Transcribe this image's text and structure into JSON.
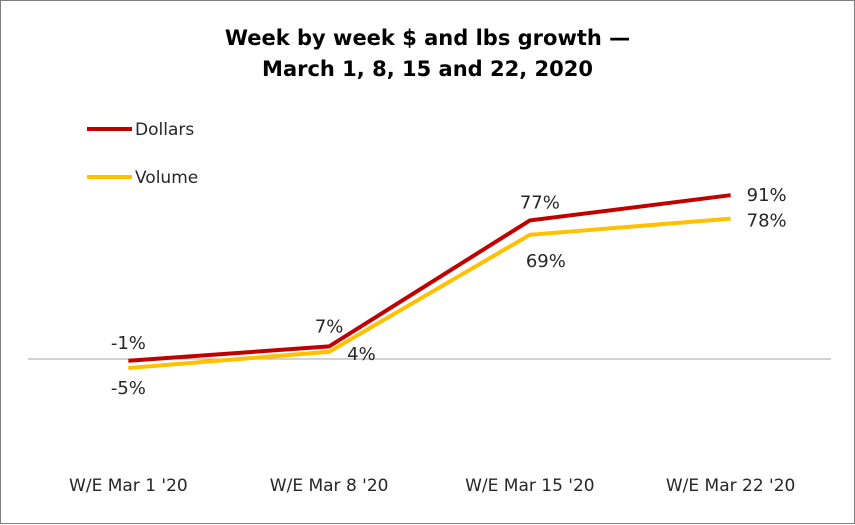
{
  "chart_data": {
    "type": "line",
    "title": "Week by week $ and lbs growth —",
    "subtitle": "March 1, 8, 15 and 22, 2020",
    "xlabel": "",
    "ylabel": "",
    "categories": [
      "W/E Mar 1 '20",
      "W/E Mar 8 '20",
      "W/E Mar 15 '20",
      "W/E Mar 22 '20"
    ],
    "series": [
      {
        "name": "Dollars",
        "color": "#c00000",
        "values": [
          -1,
          7,
          77,
          91
        ],
        "labels": [
          "-1%",
          "7%",
          "77%",
          "91%"
        ]
      },
      {
        "name": "Volume",
        "color": "#ffc000",
        "values": [
          -5,
          4,
          69,
          78
        ],
        "labels": [
          "-5%",
          "4%",
          "69%",
          "78%"
        ]
      }
    ],
    "ylim": [
      -40,
      130
    ],
    "zero_line": true,
    "grid": false,
    "legend": "top-left"
  }
}
